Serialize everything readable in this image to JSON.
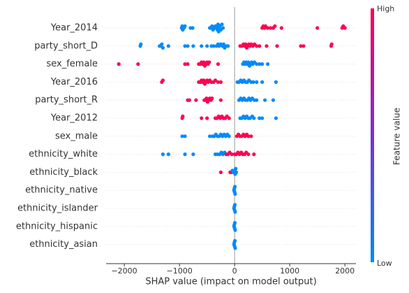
{
  "chart_data": {
    "type": "beeswarm",
    "xlabel": "SHAP value (impact on model output)",
    "colorbar_label": "Feature value",
    "colorbar_high": "High",
    "colorbar_low": "Low",
    "high_color": "#ff0052",
    "low_color": "#008bfb",
    "xlim": [
      -2330,
      2200
    ],
    "xticks": [
      {
        "value": -2000,
        "label": "−2000"
      },
      {
        "value": -1000,
        "label": "−1000"
      },
      0,
      1000,
      2000
    ],
    "categories": [
      "Year_2014",
      "party_short_D",
      "sex_female",
      "Year_2016",
      "party_short_R",
      "Year_2012",
      "sex_male",
      "ethnicity_white",
      "ethnicity_black",
      "ethnicity_native",
      "ethnicity_islander",
      "ethnicity_hispanic",
      "ethnicity_asian"
    ],
    "values": [
      [
        -960,
        -950,
        -940,
        -920,
        -900,
        -800,
        -760,
        -450,
        -430,
        -410,
        -390,
        -370,
        -350,
        -330,
        -320,
        -310,
        -300,
        -290,
        -280,
        -270,
        -250,
        -230,
        -210,
        500,
        520,
        540,
        560,
        600,
        650,
        700,
        730,
        850,
        1500,
        1950,
        1970,
        2000
      ],
      [
        -1710,
        -1700,
        -1360,
        -1340,
        -1320,
        -1300,
        -1200,
        -900,
        -850,
        -750,
        -600,
        -500,
        -420,
        -380,
        -330,
        -300,
        -280,
        -250,
        -220,
        -200,
        -180,
        -150,
        -120,
        100,
        130,
        160,
        180,
        200,
        220,
        240,
        260,
        280,
        300,
        330,
        360,
        400,
        450,
        580,
        770,
        1200,
        1250,
        1750,
        1760
      ],
      [
        -2100,
        -1750,
        -900,
        -850,
        -650,
        -620,
        -600,
        -580,
        -560,
        -540,
        -520,
        -500,
        -480,
        -460,
        -300,
        150,
        170,
        190,
        210,
        230,
        250,
        270,
        290,
        310,
        330,
        360,
        400,
        450,
        500,
        600
      ],
      [
        -1320,
        -1300,
        -650,
        -620,
        -600,
        -580,
        -560,
        -540,
        -520,
        -500,
        -480,
        -450,
        -420,
        -380,
        -350,
        -300,
        -250,
        50,
        80,
        110,
        140,
        170,
        200,
        230,
        260,
        300,
        340,
        400,
        500,
        750
      ],
      [
        -850,
        -820,
        -700,
        -550,
        -530,
        -510,
        -490,
        -470,
        -450,
        -430,
        -410,
        -250,
        80,
        110,
        140,
        170,
        200,
        230,
        260,
        290,
        320,
        360,
        400,
        550,
        700
      ],
      [
        -950,
        -940,
        -600,
        -500,
        -350,
        -320,
        -290,
        -260,
        -230,
        -200,
        -170,
        -140,
        -100,
        100,
        130,
        160,
        190,
        220,
        250,
        280,
        320,
        350,
        450,
        500,
        750
      ],
      [
        -950,
        -900,
        -450,
        -400,
        -370,
        -340,
        -310,
        -280,
        -250,
        -220,
        -190,
        -160,
        -130,
        -100,
        40,
        70,
        100,
        130,
        160,
        190,
        220,
        250,
        300
      ],
      [
        -1300,
        -1200,
        -900,
        -750,
        -350,
        -310,
        -270,
        -240,
        -210,
        -180,
        -150,
        -120,
        -90,
        -50,
        0,
        30,
        60,
        90,
        120,
        150,
        180,
        210,
        250,
        350
      ],
      [
        -250,
        -80,
        -60,
        -40,
        -20,
        0,
        10,
        20,
        30
      ],
      [
        -10,
        -5,
        0,
        5,
        10
      ],
      [
        -10,
        -5,
        0,
        5,
        10
      ],
      [
        -10,
        -5,
        0,
        5,
        10
      ],
      [
        -10,
        -5,
        0,
        5,
        10
      ]
    ],
    "feature_values": [
      [
        0,
        0,
        0,
        0,
        0,
        0,
        0,
        0,
        0,
        0,
        0,
        0,
        0,
        0,
        0,
        0,
        0,
        0,
        0,
        0,
        0,
        0,
        0,
        1,
        1,
        1,
        1,
        1,
        1,
        1,
        1,
        1,
        1,
        1,
        1,
        1
      ],
      [
        0,
        0,
        0,
        0,
        0,
        0,
        0,
        0,
        0,
        0,
        0,
        0,
        0,
        0,
        0,
        0,
        0,
        0,
        0,
        0,
        0,
        0,
        0,
        1,
        1,
        1,
        1,
        1,
        1,
        1,
        1,
        1,
        1,
        1,
        1,
        1,
        1,
        1,
        1,
        1,
        1,
        1,
        1
      ],
      [
        1,
        1,
        1,
        1,
        1,
        1,
        1,
        1,
        1,
        1,
        1,
        1,
        1,
        1,
        1,
        0,
        0,
        0,
        0,
        0,
        0,
        0,
        0,
        0,
        0,
        0,
        0,
        0,
        0,
        0
      ],
      [
        1,
        1,
        1,
        1,
        1,
        1,
        1,
        1,
        1,
        1,
        1,
        1,
        1,
        1,
        1,
        1,
        1,
        0,
        0,
        0,
        0,
        0,
        0,
        0,
        0,
        0,
        0,
        0,
        0,
        0
      ],
      [
        1,
        1,
        1,
        1,
        1,
        1,
        1,
        1,
        1,
        1,
        1,
        1,
        0,
        0,
        0,
        0,
        0,
        0,
        0,
        0,
        0,
        0,
        0,
        0,
        0
      ],
      [
        1,
        1,
        1,
        1,
        1,
        1,
        1,
        1,
        1,
        1,
        1,
        1,
        1,
        0,
        0,
        0,
        0,
        0,
        0,
        0,
        0,
        0,
        0,
        0,
        0
      ],
      [
        0,
        0,
        0,
        0,
        0,
        0,
        0,
        0,
        0,
        0,
        0,
        0,
        0,
        0,
        1,
        1,
        1,
        1,
        1,
        1,
        1,
        1,
        1
      ],
      [
        0,
        0,
        0,
        0,
        0,
        0,
        0,
        0,
        0,
        0,
        1,
        1,
        1,
        1,
        1,
        1,
        1,
        1,
        1,
        1,
        1,
        1,
        1,
        1
      ],
      [
        1,
        1,
        1,
        0,
        0,
        0,
        0,
        0,
        0
      ],
      [
        0,
        0,
        0,
        0,
        0
      ],
      [
        0,
        0,
        0,
        0,
        0
      ],
      [
        0,
        0,
        0,
        0,
        0
      ],
      [
        0,
        0,
        0,
        0,
        0
      ]
    ]
  }
}
